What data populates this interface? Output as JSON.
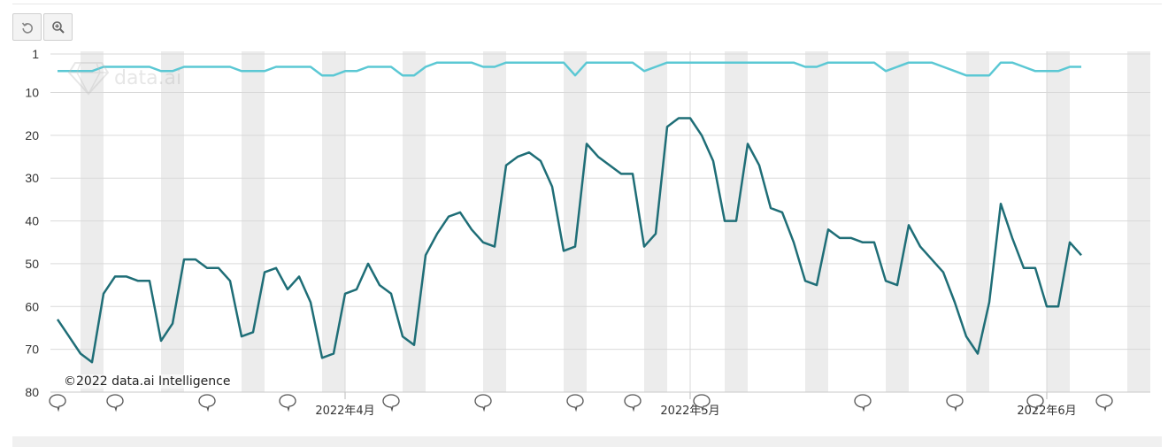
{
  "toolbar": {
    "reset_icon": "undo-icon",
    "zoom_icon": "zoom-in-icon"
  },
  "watermark": {
    "brand": "data.ai",
    "copyright": "©2022 data.ai Intelligence"
  },
  "colors": {
    "series_dark": "#1f6e77",
    "series_light": "#5bc8d4",
    "weekend_band": "#ececec",
    "grid": "#d9d9d9"
  },
  "chart_data": {
    "type": "line",
    "y_reversed": true,
    "ylim": [
      1,
      80
    ],
    "y_ticks": [
      1,
      10,
      20,
      30,
      40,
      50,
      60,
      70,
      80
    ],
    "x_tick_labels": [
      {
        "label": "2022年4月",
        "date": "2022-04-01"
      },
      {
        "label": "2022年5月",
        "date": "2022-05-01"
      },
      {
        "label": "2022年6月",
        "date": "2022-06-01"
      }
    ],
    "x_range": [
      "2022-03-07",
      "2022-06-10"
    ],
    "grid": true,
    "weekend_bands": [
      "2022-03-09",
      "2022-03-16",
      "2022-03-23",
      "2022-03-30",
      "2022-04-06",
      "2022-04-13",
      "2022-04-20",
      "2022-04-27",
      "2022-05-04",
      "2022-05-11",
      "2022-05-18",
      "2022-05-25",
      "2022-06-01",
      "2022-06-08"
    ],
    "annotation_marker_dates": [
      "2022-03-07",
      "2022-03-12",
      "2022-03-20",
      "2022-03-27",
      "2022-04-05",
      "2022-04-13",
      "2022-04-21",
      "2022-04-26",
      "2022-05-02",
      "2022-05-16",
      "2022-05-24",
      "2022-05-31",
      "2022-06-06"
    ],
    "series": [
      {
        "values": [
          [
            "2022-03-07",
            63
          ],
          [
            "2022-03-08",
            67
          ],
          [
            "2022-03-09",
            71
          ],
          [
            "2022-03-10",
            73
          ],
          [
            "2022-03-11",
            57
          ],
          [
            "2022-03-12",
            53
          ],
          [
            "2022-03-13",
            53
          ],
          [
            "2022-03-14",
            54
          ],
          [
            "2022-03-15",
            54
          ],
          [
            "2022-03-16",
            68
          ],
          [
            "2022-03-17",
            64
          ],
          [
            "2022-03-18",
            49
          ],
          [
            "2022-03-19",
            49
          ],
          [
            "2022-03-20",
            51
          ],
          [
            "2022-03-21",
            51
          ],
          [
            "2022-03-22",
            54
          ],
          [
            "2022-03-23",
            67
          ],
          [
            "2022-03-24",
            66
          ],
          [
            "2022-03-25",
            52
          ],
          [
            "2022-03-26",
            51
          ],
          [
            "2022-03-27",
            56
          ],
          [
            "2022-03-28",
            53
          ],
          [
            "2022-03-29",
            59
          ],
          [
            "2022-03-30",
            72
          ],
          [
            "2022-03-31",
            71
          ],
          [
            "2022-04-01",
            57
          ],
          [
            "2022-04-02",
            56
          ],
          [
            "2022-04-03",
            50
          ],
          [
            "2022-04-04",
            55
          ],
          [
            "2022-04-05",
            57
          ],
          [
            "2022-04-06",
            67
          ],
          [
            "2022-04-07",
            69
          ],
          [
            "2022-04-08",
            48
          ],
          [
            "2022-04-09",
            43
          ],
          [
            "2022-04-10",
            39
          ],
          [
            "2022-04-11",
            38
          ],
          [
            "2022-04-12",
            42
          ],
          [
            "2022-04-13",
            45
          ],
          [
            "2022-04-14",
            46
          ],
          [
            "2022-04-15",
            27
          ],
          [
            "2022-04-16",
            25
          ],
          [
            "2022-04-17",
            24
          ],
          [
            "2022-04-18",
            26
          ],
          [
            "2022-04-19",
            32
          ],
          [
            "2022-04-20",
            47
          ],
          [
            "2022-04-21",
            46
          ],
          [
            "2022-04-22",
            22
          ],
          [
            "2022-04-23",
            25
          ],
          [
            "2022-04-24",
            27
          ],
          [
            "2022-04-25",
            29
          ],
          [
            "2022-04-26",
            29
          ],
          [
            "2022-04-27",
            46
          ],
          [
            "2022-04-28",
            43
          ],
          [
            "2022-04-29",
            18
          ],
          [
            "2022-04-30",
            16
          ],
          [
            "2022-05-01",
            16
          ],
          [
            "2022-05-02",
            20
          ],
          [
            "2022-05-03",
            26
          ],
          [
            "2022-05-04",
            40
          ],
          [
            "2022-05-05",
            40
          ],
          [
            "2022-05-06",
            22
          ],
          [
            "2022-05-07",
            27
          ],
          [
            "2022-05-08",
            37
          ],
          [
            "2022-05-09",
            38
          ],
          [
            "2022-05-10",
            45
          ],
          [
            "2022-05-11",
            54
          ],
          [
            "2022-05-12",
            55
          ],
          [
            "2022-05-13",
            42
          ],
          [
            "2022-05-14",
            44
          ],
          [
            "2022-05-15",
            44
          ],
          [
            "2022-05-16",
            45
          ],
          [
            "2022-05-17",
            45
          ],
          [
            "2022-05-18",
            54
          ],
          [
            "2022-05-19",
            55
          ],
          [
            "2022-05-20",
            41
          ],
          [
            "2022-05-21",
            46
          ],
          [
            "2022-05-22",
            49
          ],
          [
            "2022-05-23",
            52
          ],
          [
            "2022-05-24",
            59
          ],
          [
            "2022-05-25",
            67
          ],
          [
            "2022-05-26",
            71
          ],
          [
            "2022-05-27",
            59
          ],
          [
            "2022-05-28",
            36
          ],
          [
            "2022-05-29",
            44
          ],
          [
            "2022-05-30",
            51
          ],
          [
            "2022-05-31",
            51
          ],
          [
            "2022-06-01",
            60
          ],
          [
            "2022-06-02",
            60
          ],
          [
            "2022-06-03",
            45
          ],
          [
            "2022-06-04",
            48
          ]
        ]
      },
      {
        "values": [
          [
            "2022-03-07",
            5
          ],
          [
            "2022-03-08",
            5
          ],
          [
            "2022-03-09",
            5
          ],
          [
            "2022-03-10",
            5
          ],
          [
            "2022-03-11",
            4
          ],
          [
            "2022-03-12",
            4
          ],
          [
            "2022-03-13",
            4
          ],
          [
            "2022-03-14",
            4
          ],
          [
            "2022-03-15",
            4
          ],
          [
            "2022-03-16",
            5
          ],
          [
            "2022-03-17",
            5
          ],
          [
            "2022-03-18",
            4
          ],
          [
            "2022-03-19",
            4
          ],
          [
            "2022-03-20",
            4
          ],
          [
            "2022-03-21",
            4
          ],
          [
            "2022-03-22",
            4
          ],
          [
            "2022-03-23",
            5
          ],
          [
            "2022-03-24",
            5
          ],
          [
            "2022-03-25",
            5
          ],
          [
            "2022-03-26",
            4
          ],
          [
            "2022-03-27",
            4
          ],
          [
            "2022-03-28",
            4
          ],
          [
            "2022-03-29",
            4
          ],
          [
            "2022-03-30",
            6
          ],
          [
            "2022-03-31",
            6
          ],
          [
            "2022-04-01",
            5
          ],
          [
            "2022-04-02",
            5
          ],
          [
            "2022-04-03",
            4
          ],
          [
            "2022-04-04",
            4
          ],
          [
            "2022-04-05",
            4
          ],
          [
            "2022-04-06",
            6
          ],
          [
            "2022-04-07",
            6
          ],
          [
            "2022-04-08",
            4
          ],
          [
            "2022-04-09",
            3
          ],
          [
            "2022-04-10",
            3
          ],
          [
            "2022-04-11",
            3
          ],
          [
            "2022-04-12",
            3
          ],
          [
            "2022-04-13",
            4
          ],
          [
            "2022-04-14",
            4
          ],
          [
            "2022-04-15",
            3
          ],
          [
            "2022-04-16",
            3
          ],
          [
            "2022-04-17",
            3
          ],
          [
            "2022-04-18",
            3
          ],
          [
            "2022-04-19",
            3
          ],
          [
            "2022-04-20",
            3
          ],
          [
            "2022-04-21",
            6
          ],
          [
            "2022-04-22",
            3
          ],
          [
            "2022-04-23",
            3
          ],
          [
            "2022-04-24",
            3
          ],
          [
            "2022-04-25",
            3
          ],
          [
            "2022-04-26",
            3
          ],
          [
            "2022-04-27",
            5
          ],
          [
            "2022-04-28",
            4
          ],
          [
            "2022-04-29",
            3
          ],
          [
            "2022-04-30",
            3
          ],
          [
            "2022-05-01",
            3
          ],
          [
            "2022-05-02",
            3
          ],
          [
            "2022-05-03",
            3
          ],
          [
            "2022-05-04",
            3
          ],
          [
            "2022-05-05",
            3
          ],
          [
            "2022-05-06",
            3
          ],
          [
            "2022-05-07",
            3
          ],
          [
            "2022-05-08",
            3
          ],
          [
            "2022-05-09",
            3
          ],
          [
            "2022-05-10",
            3
          ],
          [
            "2022-05-11",
            4
          ],
          [
            "2022-05-12",
            4
          ],
          [
            "2022-05-13",
            3
          ],
          [
            "2022-05-14",
            3
          ],
          [
            "2022-05-15",
            3
          ],
          [
            "2022-05-16",
            3
          ],
          [
            "2022-05-17",
            3
          ],
          [
            "2022-05-18",
            5
          ],
          [
            "2022-05-19",
            4
          ],
          [
            "2022-05-20",
            3
          ],
          [
            "2022-05-21",
            3
          ],
          [
            "2022-05-22",
            3
          ],
          [
            "2022-05-23",
            4
          ],
          [
            "2022-05-24",
            5
          ],
          [
            "2022-05-25",
            6
          ],
          [
            "2022-05-26",
            6
          ],
          [
            "2022-05-27",
            6
          ],
          [
            "2022-05-28",
            3
          ],
          [
            "2022-05-29",
            3
          ],
          [
            "2022-05-30",
            4
          ],
          [
            "2022-05-31",
            5
          ],
          [
            "2022-06-01",
            5
          ],
          [
            "2022-06-02",
            5
          ],
          [
            "2022-06-03",
            4
          ],
          [
            "2022-06-04",
            4
          ]
        ]
      }
    ]
  }
}
